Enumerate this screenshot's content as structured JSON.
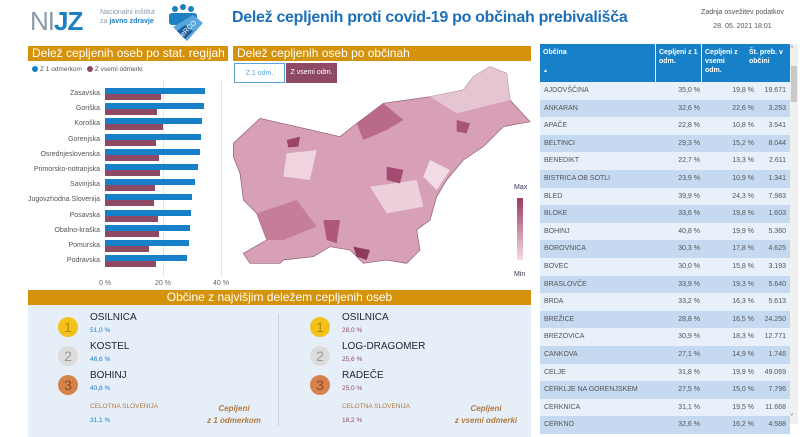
{
  "header": {
    "logo_text": "NIJZ",
    "logo_sub1": "Nacionalni inštitut",
    "logo_sub2_a": "za",
    "logo_sub2_b": "javno zdravje",
    "logo2_text": "eRCO",
    "title": "Delež cepljenih proti covid-19 po občinah prebivališča",
    "update_label": "Zadnja osvežitev podatkov",
    "update_value": "28. 05. 2021 18:01"
  },
  "colors": {
    "accent": "#d4930a",
    "blue": "#1680c9",
    "maroon": "#8e4a64",
    "table_alt": "#c5daf0",
    "table_row": "#e8f0fa"
  },
  "regions_panel": {
    "title": "Delež cepljenih oseb po stat. regijah"
  },
  "chart_data": {
    "type": "bar",
    "orientation": "horizontal",
    "title": "Delež cepljenih oseb po stat. regijah",
    "legend": [
      "Z 1 odmerkom",
      "Z vsemi odmerki"
    ],
    "legend_position": "top-left",
    "categories": [
      "Zasavska",
      "Goriška",
      "Koroška",
      "Gorenjska",
      "Osrednjeslovenska",
      "Primorsko-notranjska",
      "Savinjska",
      "Jugovzhodna Slovenija",
      "Posavska",
      "Obalno-kraška",
      "Pomurska",
      "Podravska"
    ],
    "series": [
      {
        "name": "Z 1 odmerkom",
        "color": "#1680c9",
        "values": [
          34.4,
          34.2,
          33.6,
          33.0,
          32.9,
          32.2,
          31.2,
          29.9,
          29.7,
          29.3,
          28.9,
          28.3
        ]
      },
      {
        "name": "Z vsemi odmerki",
        "color": "#8e4a64",
        "values": [
          19.2,
          18.1,
          20.1,
          17.6,
          18.5,
          18.8,
          17.2,
          16.8,
          18.2,
          18.5,
          15.0,
          17.7
        ]
      }
    ],
    "xlim": [
      0,
      40
    ],
    "xticks": [
      "0 %",
      "20 %",
      "40 %"
    ]
  },
  "map_panel": {
    "title": "Delež cepljenih oseb po občinah",
    "toggle": [
      "Z 1 odm.",
      "Z vsemi odm."
    ],
    "active_toggle": 1,
    "legend_max": "Max",
    "legend_min": "Min"
  },
  "table": {
    "headers": [
      "Občina",
      "Cepljeni z 1 odm.",
      "Cepljeni z vsemi odm.",
      "Št. preb. v občini"
    ],
    "sort_icon": "▲",
    "rows": [
      [
        "AJDOVŠČINA",
        "35,0 %",
        "19,8 %",
        "19.671"
      ],
      [
        "ANKARAN",
        "32,6 %",
        "22,6 %",
        "3.253"
      ],
      [
        "APAČE",
        "22,8 %",
        "10,8 %",
        "3.541"
      ],
      [
        "BELTINCI",
        "29,3 %",
        "15,2 %",
        "8.044"
      ],
      [
        "BENEDIKT",
        "22,7 %",
        "13,3 %",
        "2.611"
      ],
      [
        "BISTRICA OB SOTLI",
        "23,9 %",
        "10,9 %",
        "1.341"
      ],
      [
        "BLED",
        "39,9 %",
        "24,3 %",
        "7.983"
      ],
      [
        "BLOKE",
        "33,6 %",
        "19,8 %",
        "1.603"
      ],
      [
        "BOHINJ",
        "40,8 %",
        "19,9 %",
        "5.360"
      ],
      [
        "BOROVNICA",
        "30,3 %",
        "17,8 %",
        "4.625"
      ],
      [
        "BOVEC",
        "30,0 %",
        "15,8 %",
        "3.193"
      ],
      [
        "BRASLOVČE",
        "33,9 %",
        "19,3 %",
        "5.640"
      ],
      [
        "BRDA",
        "33,2 %",
        "16,3 %",
        "5.613"
      ],
      [
        "BREŽICE",
        "28,8 %",
        "16,5 %",
        "24.250"
      ],
      [
        "BREZOVICA",
        "30,9 %",
        "18,3 %",
        "12.771"
      ],
      [
        "CANKOVA",
        "27,1 %",
        "14,9 %",
        "1.746"
      ],
      [
        "CELJE",
        "31,8 %",
        "19,9 %",
        "49.069"
      ],
      [
        "CERKLJE NA GORENJSKEM",
        "27,5 %",
        "15,0 %",
        "7.796"
      ],
      [
        "CERKNICA",
        "31,1 %",
        "19,5 %",
        "11.668"
      ],
      [
        "CERKNO",
        "32,6 %",
        "16,2 %",
        "4.588"
      ]
    ]
  },
  "top": {
    "title": "Občine z najvišjim deležem cepljenih oseb",
    "left": {
      "items": [
        {
          "rank": "1",
          "name": "OSILNICA",
          "value": "51,0 %"
        },
        {
          "rank": "2",
          "name": "KOSTEL",
          "value": "46,6 %"
        },
        {
          "rank": "3",
          "name": "BOHINJ",
          "value": "40,8 %"
        }
      ],
      "total_label": "CELOTNA SLOVENIJA",
      "total_value": "31,1 %",
      "caption1": "Cepljeni",
      "caption2": "z 1 odmerkom"
    },
    "right": {
      "items": [
        {
          "rank": "1",
          "name": "OSILNICA",
          "value": "28,0 %"
        },
        {
          "rank": "2",
          "name": "LOG-DRAGOMER",
          "value": "25,6 %"
        },
        {
          "rank": "3",
          "name": "RADEČE",
          "value": "25,0 %"
        }
      ],
      "total_label": "CELOTNA SLOVENIJA",
      "total_value": "18,2 %",
      "caption1": "Cepljeni",
      "caption2": "z vsemi odmerki"
    }
  }
}
